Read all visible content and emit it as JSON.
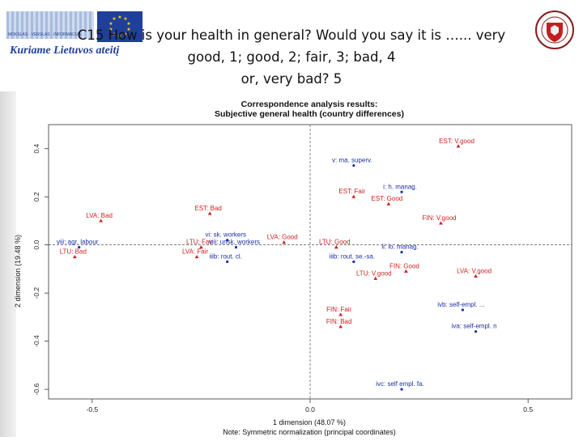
{
  "header": {
    "logo_left_text": "Kuriame Lietuvos ateitį",
    "logo_left_small": "MOKSLAS · VERSLAS · INFORMACIJA",
    "title_lines": [
      "C15 How is your health in general? Would you say it is …... very",
      "good, 1; good, 2; fair, 3; bad, 4",
      "or, very bad? 5"
    ]
  },
  "chart_data": {
    "type": "scatter",
    "title": "Correspondence analysis results:",
    "subtitle": "Subjective general health (country differences)",
    "xlabel": "1 dimension (48.07 %)",
    "ylabel": "2 dimension (19.48 %)",
    "note": "Note: Symmetric normalization (principal coordinates)",
    "xlim": [
      -0.6,
      0.6
    ],
    "ylim": [
      -0.64,
      0.5
    ],
    "xticks": [
      {
        "v": -0.5,
        "label": "-0.5"
      },
      {
        "v": 0.0,
        "label": "0.0"
      },
      {
        "v": 0.5,
        "label": "0.5"
      }
    ],
    "yticks": [
      {
        "v": 0.4,
        "label": "0.4"
      },
      {
        "v": 0.2,
        "label": "0.2"
      },
      {
        "v": 0.0,
        "label": "0.0"
      },
      {
        "v": -0.2,
        "label": "-0.2"
      },
      {
        "v": -0.4,
        "label": "-0.4"
      },
      {
        "v": -0.6,
        "label": "-0.6"
      }
    ],
    "grid": false,
    "colors": {
      "country": "#cc2222",
      "occupation": "#1a2fa8"
    },
    "points": [
      {
        "label": "EST: V.good",
        "x": 0.34,
        "y": 0.41,
        "group": "country"
      },
      {
        "label": "v: ma. superv.",
        "x": 0.1,
        "y": 0.33,
        "group": "occupation"
      },
      {
        "label": "i: h. manag.",
        "x": 0.21,
        "y": 0.22,
        "group": "occupation"
      },
      {
        "label": "EST: Fair",
        "x": 0.1,
        "y": 0.2,
        "group": "country"
      },
      {
        "label": "EST: Good",
        "x": 0.18,
        "y": 0.17,
        "group": "country"
      },
      {
        "label": "EST: Bad",
        "x": -0.23,
        "y": 0.13,
        "group": "country"
      },
      {
        "label": "FIN: V.good",
        "x": 0.3,
        "y": 0.09,
        "group": "country"
      },
      {
        "label": "LVA: Bad",
        "x": -0.48,
        "y": 0.1,
        "group": "country"
      },
      {
        "label": "vi: sk. workers",
        "x": -0.19,
        "y": 0.02,
        "group": "occupation"
      },
      {
        "label": "LVA: Good",
        "x": -0.06,
        "y": 0.01,
        "group": "country"
      },
      {
        "label": "viii: agr. labour",
        "x": -0.53,
        "y": -0.01,
        "group": "occupation"
      },
      {
        "label": "LTU: Fair",
        "x": -0.25,
        "y": -0.01,
        "group": "country"
      },
      {
        "label": "viii: unsk. workers",
        "x": -0.17,
        "y": -0.01,
        "group": "occupation"
      },
      {
        "label": "LTU: Good",
        "x": 0.06,
        "y": -0.01,
        "group": "country"
      },
      {
        "label": "ii: lo. manag.",
        "x": 0.21,
        "y": -0.03,
        "group": "occupation"
      },
      {
        "label": "LTU: Bad",
        "x": -0.54,
        "y": -0.05,
        "group": "country"
      },
      {
        "label": "LVA: Fair",
        "x": -0.26,
        "y": -0.05,
        "group": "country"
      },
      {
        "label": "iiib: rout. cl.",
        "x": -0.19,
        "y": -0.07,
        "group": "occupation"
      },
      {
        "label": "iiib: rout. se.-sa.",
        "x": 0.1,
        "y": -0.07,
        "group": "occupation"
      },
      {
        "label": "FIN: Good",
        "x": 0.22,
        "y": -0.11,
        "group": "country"
      },
      {
        "label": "LVA: V.good",
        "x": 0.38,
        "y": -0.13,
        "group": "country"
      },
      {
        "label": "LTU: V.good",
        "x": 0.15,
        "y": -0.14,
        "group": "country"
      },
      {
        "label": "ivb: self-empl. ...",
        "x": 0.35,
        "y": -0.27,
        "group": "occupation"
      },
      {
        "label": "FIN: Fair",
        "x": 0.07,
        "y": -0.29,
        "group": "country"
      },
      {
        "label": "FIN: Bad",
        "x": 0.07,
        "y": -0.34,
        "group": "country"
      },
      {
        "label": "iva: self-empl. n",
        "x": 0.38,
        "y": -0.36,
        "group": "occupation"
      },
      {
        "label": "ivc: self empl. fa.",
        "x": 0.21,
        "y": -0.6,
        "group": "occupation"
      }
    ]
  }
}
